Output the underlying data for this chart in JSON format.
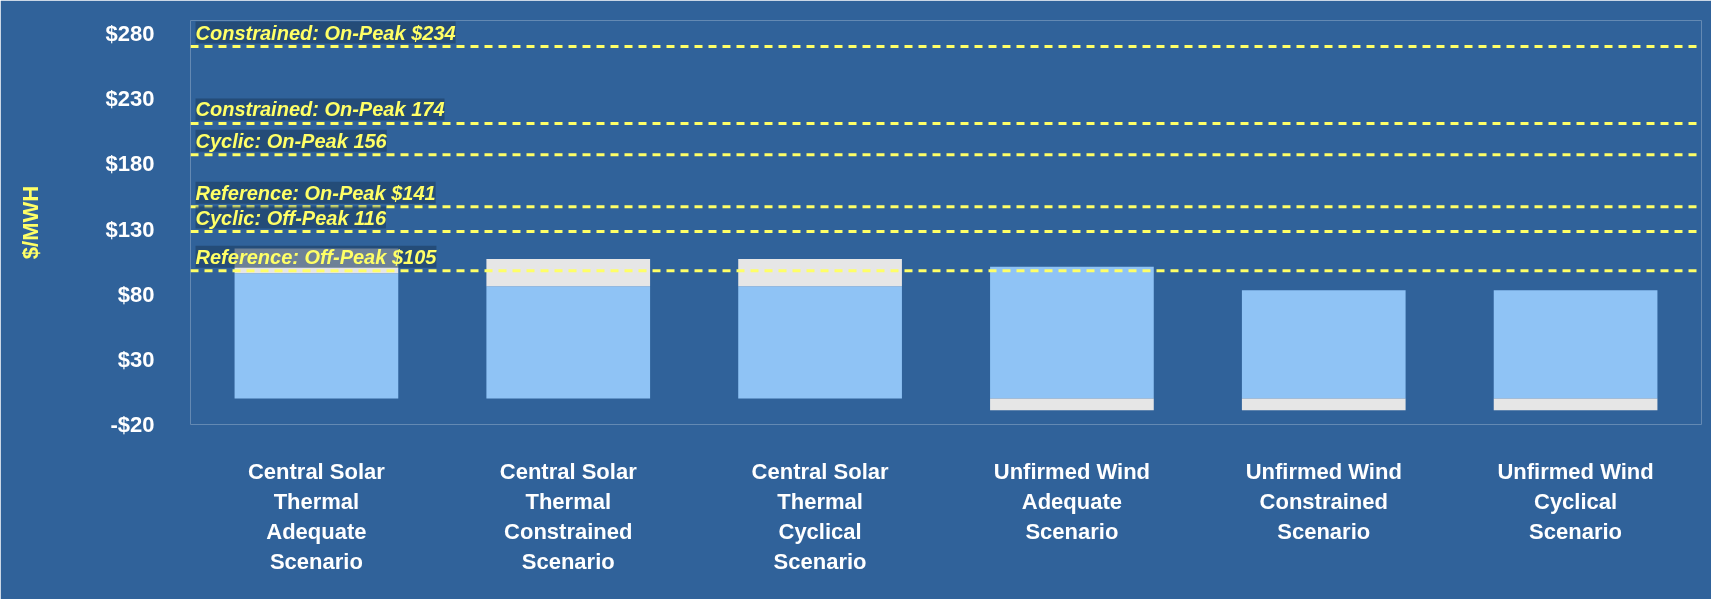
{
  "chart_data": {
    "type": "bar",
    "stacked": true,
    "ylabel": "$/MWH",
    "categories": [
      "Central Solar Thermal Adequate Scenario",
      "Central Solar Thermal Constrained Scenario",
      "Central Solar Thermal Cyclical Scenario",
      "Unfirmed Wind Adequate Scenario",
      "Unfirmed Wind Constrained Scenario",
      "Unfirmed Wind Cyclical Scenario"
    ],
    "series": [
      {
        "color": "#8fc3f5",
        "values": [
          96,
          86,
          86,
          101,
          83,
          83
        ]
      },
      {
        "color": "#e6e6e6",
        "values": [
          19,
          21,
          21,
          -9,
          -9,
          -9
        ]
      }
    ],
    "ylim": [
      -20,
      290
    ],
    "yticks": [
      {
        "value": -20,
        "label": "-$20"
      },
      {
        "value": 30,
        "label": "$30"
      },
      {
        "value": 80,
        "label": "$80"
      },
      {
        "value": 130,
        "label": "$130"
      },
      {
        "value": 180,
        "label": "$180"
      },
      {
        "value": 230,
        "label": "$230"
      },
      {
        "value": 280,
        "label": "$280"
      }
    ],
    "grid": false,
    "ref_lines": [
      {
        "axis": "y",
        "value": 270,
        "label": "Constrained: On-Peak $234",
        "color": "#ffff66",
        "line_style": "dashed"
      },
      {
        "axis": "y",
        "value": 211,
        "label": "Constrained: On-Peak 174",
        "color": "#ffff66",
        "line_style": "dashed"
      },
      {
        "axis": "y",
        "value": 187,
        "label": "Cyclic: On-Peak 156",
        "color": "#ffff66",
        "line_style": "dashed"
      },
      {
        "axis": "y",
        "value": 147,
        "label": "Reference: On-Peak $141",
        "color": "#ffff66",
        "line_style": "dashed"
      },
      {
        "axis": "y",
        "value": 128,
        "label": "Cyclic: Off-Peak 116",
        "color": "#ffff66",
        "line_style": "dashed"
      },
      {
        "axis": "y",
        "value": 98,
        "label": "Reference: Off-Peak $105",
        "color": "#ffff66",
        "line_style": "dashed"
      }
    ]
  }
}
